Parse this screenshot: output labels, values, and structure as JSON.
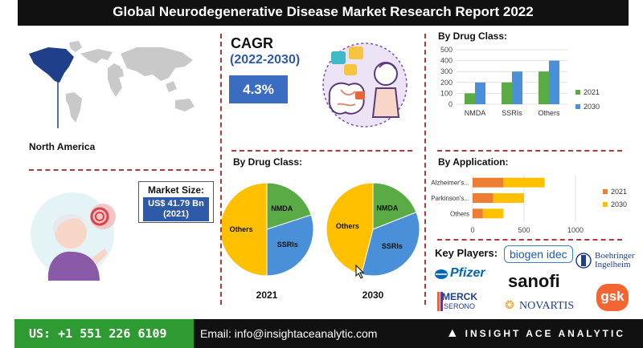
{
  "title": "Global Neurodegenerative Disease Market  Research Report 2022",
  "region": {
    "label": "North America"
  },
  "cagr": {
    "label": "CAGR",
    "period": "(2022-2030)",
    "value": "4.3%"
  },
  "market_size": {
    "label": "Market Size:",
    "value_line1": "US$ 41.79 Bn",
    "value_line2": "(2021)"
  },
  "pie_section_title": "By Drug Class:",
  "key_players": {
    "label": "Key Players:",
    "logos": {
      "biogen": "biogen idec",
      "boehringer1": "Boehringer",
      "boehringer2": "Ingelheim",
      "pfizer": "Pfizer",
      "sanofi": "sanofi",
      "merck1": "MERCK",
      "merck2": "SERONO",
      "novartis": "NOVARTIS",
      "gsk": "gsk"
    }
  },
  "footer": {
    "phone": "US: +1 551 226 6109",
    "email": "Email: info@insightaceanalytic.com",
    "brand": "INSIGHT ACE ANALYTIC"
  },
  "colors": {
    "y2021": "#5aab45",
    "y2030": "#4a90d9",
    "app2021": "#ed7d31",
    "app2030": "#ffc000",
    "pie_nmda": "#5aab45",
    "pie_ssri": "#4a90d9",
    "pie_others": "#ffc000"
  },
  "chart_data": [
    {
      "type": "bar",
      "title": "By Drug Class:",
      "categories": [
        "NMDA",
        "SSRIs",
        "Others"
      ],
      "series": [
        {
          "name": "2021",
          "values": [
            100,
            200,
            300
          ]
        },
        {
          "name": "2030",
          "values": [
            200,
            300,
            400
          ]
        }
      ],
      "ylim": [
        0,
        500
      ],
      "yticks": [
        0,
        100,
        200,
        300,
        400,
        500
      ],
      "legend": "right"
    },
    {
      "type": "bar",
      "orientation": "horizontal",
      "title": "By Application:",
      "categories": [
        "Alzheimer's...",
        "Parkinson's...",
        "Others"
      ],
      "series": [
        {
          "name": "2021",
          "values": [
            300,
            200,
            100
          ]
        },
        {
          "name": "2030",
          "values": [
            400,
            300,
            200
          ]
        }
      ],
      "stacked": true,
      "xlim": [
        0,
        1000
      ],
      "xticks": [
        0,
        500,
        1000
      ],
      "legend": "right"
    },
    {
      "type": "pie",
      "title": "2021",
      "slices": [
        {
          "label": "NMDA",
          "value": 20
        },
        {
          "label": "SSRIs",
          "value": 30
        },
        {
          "label": "Others",
          "value": 50
        }
      ]
    },
    {
      "type": "pie",
      "title": "2030",
      "slices": [
        {
          "label": "NMDA",
          "value": 19
        },
        {
          "label": "SSRIs",
          "value": 35
        },
        {
          "label": "Others",
          "value": 46
        }
      ]
    }
  ]
}
